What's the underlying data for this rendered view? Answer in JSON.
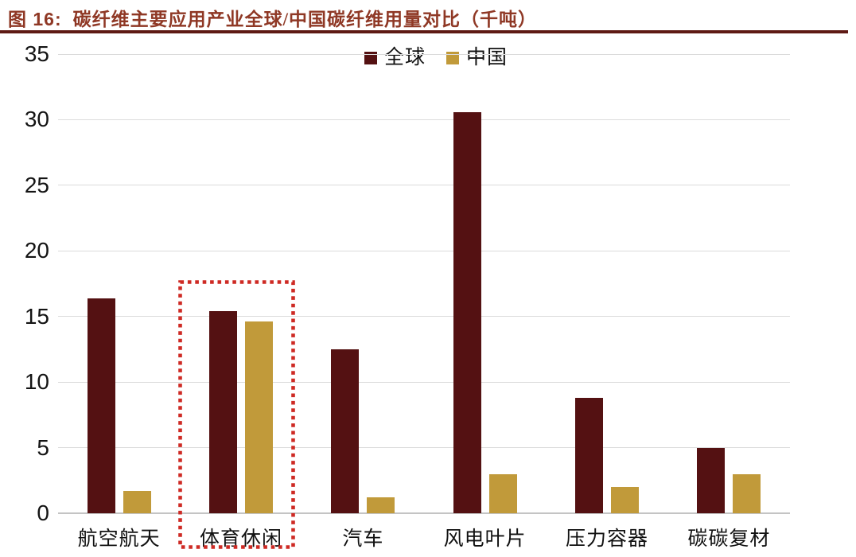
{
  "figure": {
    "label": "图 16:",
    "title": "碳纤维主要应用产业全球/中国碳纤维用量对比（千吨）"
  },
  "colors": {
    "title_text": "#8F3825",
    "title_rule": "#5E1A14",
    "global_series": "#541112",
    "china_series": "#C19A3A",
    "highlight_box": "#CE2A24",
    "gridline": "#DBDBDB",
    "axis_baseline": "#C4C4C4",
    "tick_text": "#141414"
  },
  "chart_data": {
    "type": "bar",
    "title": "碳纤维主要应用产业全球/中国碳纤维用量对比（千吨）",
    "unit_label": "千吨",
    "categories": [
      "航空航天",
      "体育休闲",
      "汽车",
      "风电叶片",
      "压力容器",
      "碳碳复材"
    ],
    "series": [
      {
        "name": "全球",
        "color": "#541112",
        "values": [
          16.4,
          15.4,
          12.5,
          30.6,
          8.8,
          5.0
        ]
      },
      {
        "name": "中国",
        "color": "#C19A3A",
        "values": [
          1.7,
          14.6,
          1.2,
          3.0,
          2.0,
          3.0
        ]
      }
    ],
    "ylim": [
      0,
      35
    ],
    "yticks": [
      0,
      5,
      10,
      15,
      20,
      25,
      30,
      35
    ],
    "grid": "horizontal",
    "legend_position": "top-center",
    "highlight": {
      "category": "体育休闲",
      "style": "red dotted rectangle"
    }
  }
}
